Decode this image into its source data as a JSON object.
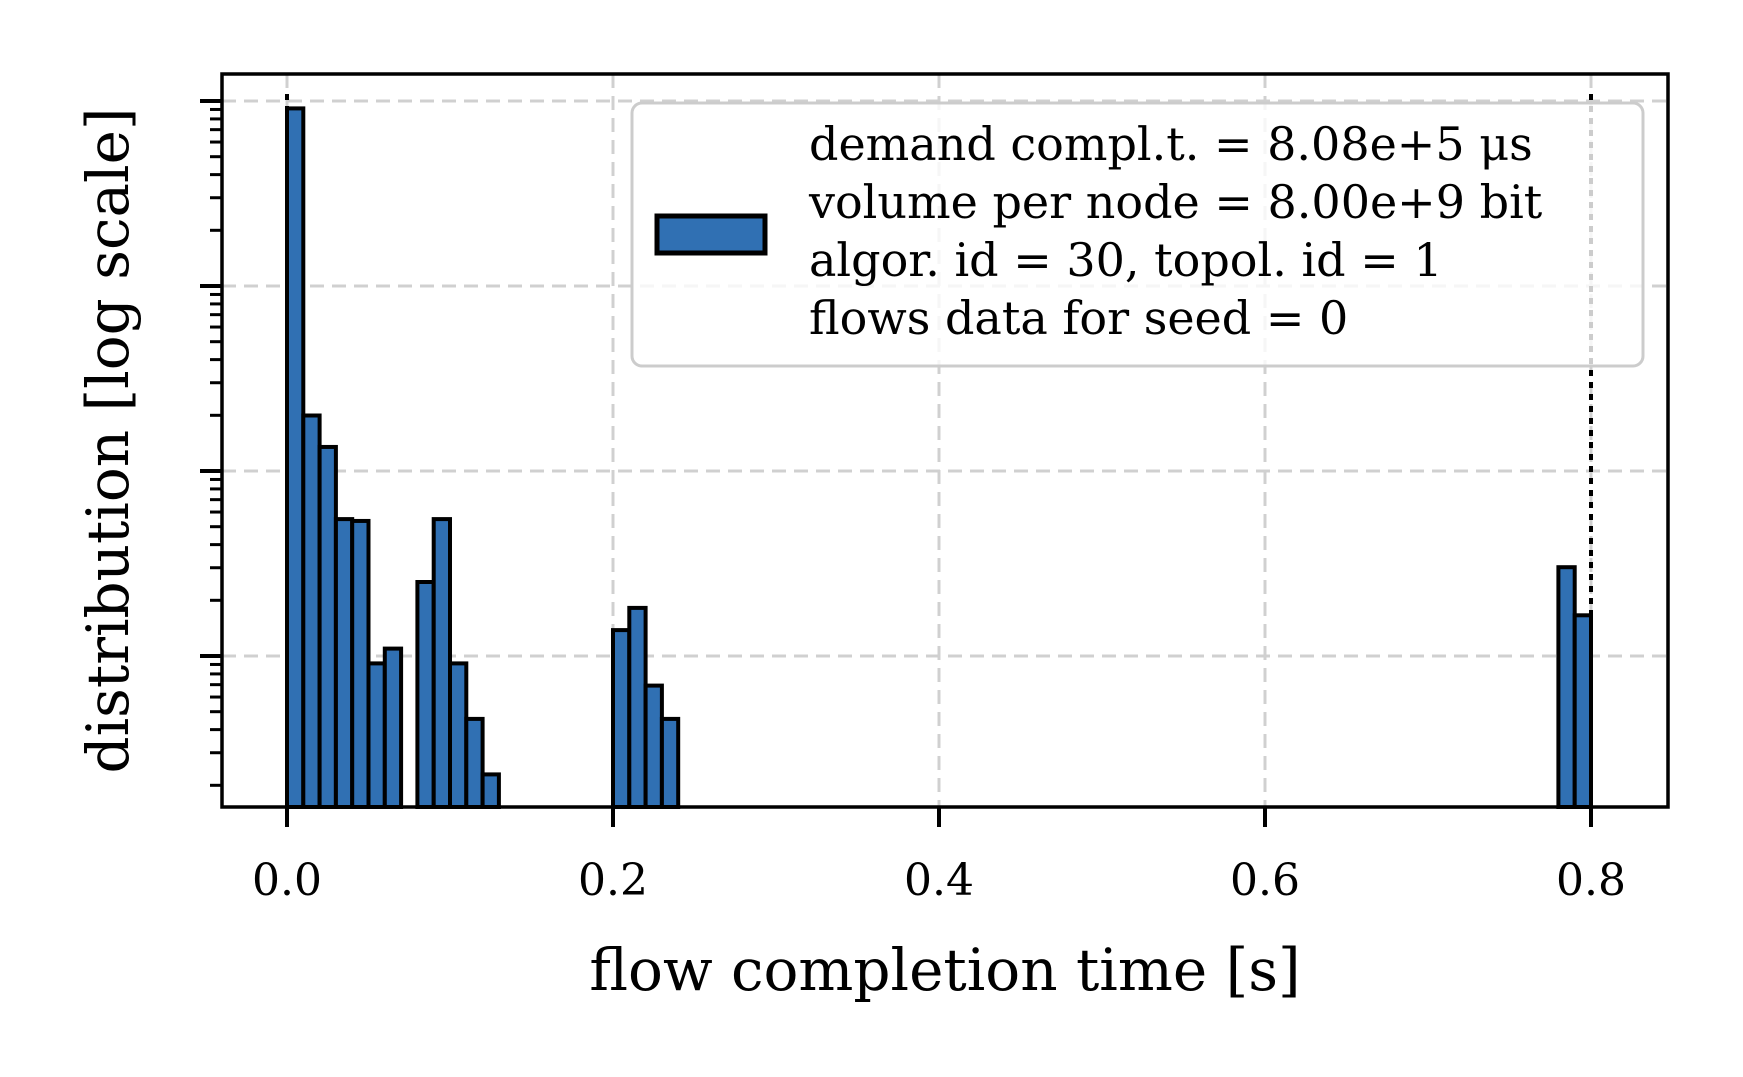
{
  "chart_data": {
    "type": "bar",
    "xlabel": "flow completion time [s]",
    "ylabel": "distribution [log scale]",
    "yscale": "log",
    "xlim": [
      -0.04,
      0.85
    ],
    "ylim_decades": [
      -3.8,
      0.0
    ],
    "xticks": [
      0.0,
      0.2,
      0.4,
      0.6,
      0.8
    ],
    "xtick_labels": [
      "0.0",
      "0.2",
      "0.4",
      "0.6",
      "0.8"
    ],
    "y_major_decades": [
      -3,
      -2,
      -1,
      0
    ],
    "grid": true,
    "legend_placement": "top-right",
    "bar_color": "#3070b3",
    "edge_color": "#000000",
    "bin_width": 0.01,
    "bins": [
      {
        "x0": 0.0,
        "log10": -0.04
      },
      {
        "x0": 0.01,
        "log10": -1.7
      },
      {
        "x0": 0.02,
        "log10": -1.87
      },
      {
        "x0": 0.03,
        "log10": -2.26
      },
      {
        "x0": 0.04,
        "log10": -2.27
      },
      {
        "x0": 0.05,
        "log10": -3.04
      },
      {
        "x0": 0.06,
        "log10": -2.96
      },
      {
        "x0": 0.08,
        "log10": -2.6
      },
      {
        "x0": 0.09,
        "log10": -2.26
      },
      {
        "x0": 0.1,
        "log10": -3.04
      },
      {
        "x0": 0.11,
        "log10": -3.34
      },
      {
        "x0": 0.12,
        "log10": -3.64
      },
      {
        "x0": 0.2,
        "log10": -2.86
      },
      {
        "x0": 0.21,
        "log10": -2.74
      },
      {
        "x0": 0.22,
        "log10": -3.16
      },
      {
        "x0": 0.23,
        "log10": -3.34
      },
      {
        "x0": 0.78,
        "log10": -2.52
      },
      {
        "x0": 0.79,
        "log10": -2.78
      }
    ],
    "legend": [
      "demand compl.t. = 8.08e+5 μs",
      "volume per node = 8.00e+9 bit",
      "algor. id = 30, topol. id = 1",
      "flows data for seed = 0"
    ]
  }
}
